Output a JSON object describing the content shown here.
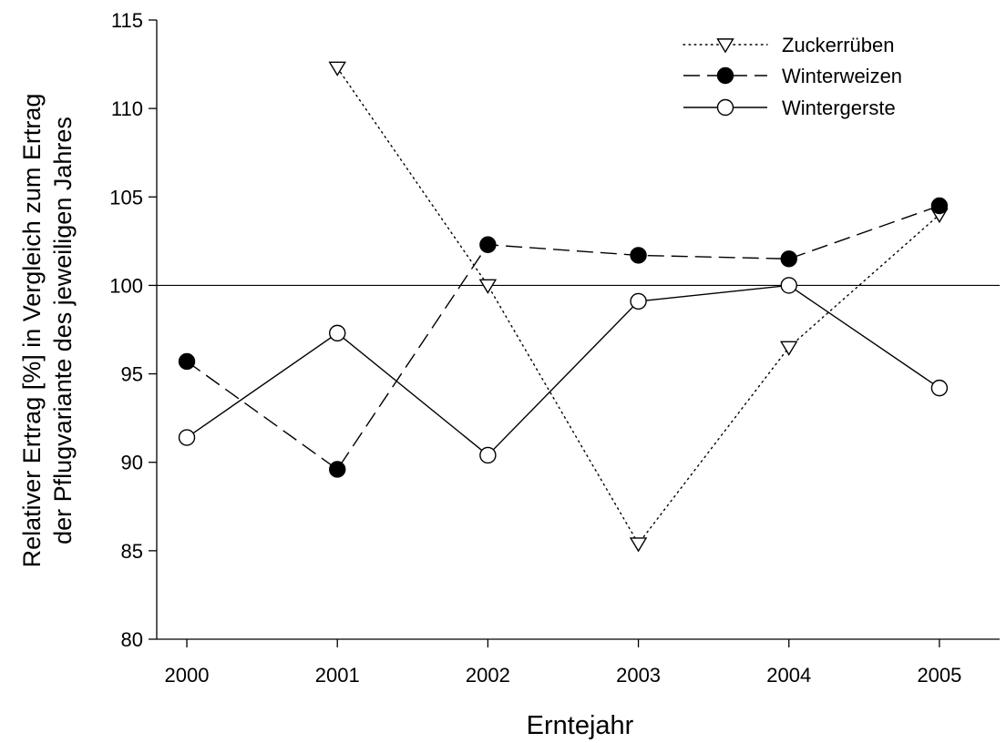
{
  "chart_data": {
    "type": "line",
    "title": "",
    "xlabel": "Erntejahr",
    "ylabel_lines": [
      "Relativer Ertrag [%] in Vergleich zum Ertrag",
      "der Pflugvariante des jeweiligen Jahres"
    ],
    "categories": [
      "2000",
      "2001",
      "2002",
      "2003",
      "2004",
      "2005"
    ],
    "x": [
      2000,
      2001,
      2002,
      2003,
      2004,
      2005
    ],
    "xlim": [
      1999.8,
      2005.4
    ],
    "ylim": [
      80,
      115
    ],
    "yticks": [
      80,
      85,
      90,
      95,
      100,
      105,
      110,
      115
    ],
    "reference_line": 100,
    "legend_position": "top-right",
    "series": [
      {
        "name": "Zuckerrüben",
        "style": "dotted",
        "marker": "triangle-down-open",
        "x": [
          2001,
          2002,
          2003,
          2004,
          2005
        ],
        "values": [
          112.3,
          100.0,
          85.4,
          96.5,
          104.0
        ]
      },
      {
        "name": "Winterweizen",
        "style": "dashed",
        "marker": "circle-filled",
        "x": [
          2000,
          2001,
          2002,
          2003,
          2004,
          2005
        ],
        "values": [
          95.7,
          89.6,
          102.3,
          101.7,
          101.5,
          104.5
        ]
      },
      {
        "name": "Wintergerste",
        "style": "solid",
        "marker": "circle-open",
        "x": [
          2000,
          2001,
          2002,
          2003,
          2004,
          2005
        ],
        "values": [
          91.4,
          97.3,
          90.4,
          99.1,
          100.0,
          94.2
        ]
      }
    ]
  }
}
